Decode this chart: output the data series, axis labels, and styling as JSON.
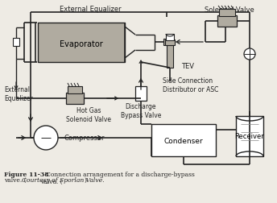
{
  "bg_color": "#eeebe4",
  "line_color": "#222222",
  "fig_caption_bold": "Figure 11-38",
  "fig_caption_normal": "   Connection arrangement for a discharge-bypass\nvalve. (",
  "fig_caption_italic": "Courtesy of Sporlan Valve.",
  "fig_caption_end": ")",
  "labels": {
    "external_equalizer_top": "External Equalizer",
    "solenoid_valve": "Solenoid Valve",
    "evaporator": "Evaporator",
    "tev": "TEV",
    "external_equalizer_left": "External\nEqualizer",
    "side_connection": "Side Connection\nDistributor or ASC",
    "hot_gas_solenoid": "Hot Gas\nSolenoid Valve",
    "discharge_bypass": "Discharge\nBypass Valve",
    "compressor": "Compressor",
    "condenser": "Condenser",
    "receiver": "Receiver"
  },
  "gray": "#b0aba0",
  "dgray": "#888480"
}
